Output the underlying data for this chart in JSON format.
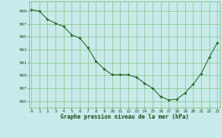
{
  "x": [
    0,
    1,
    2,
    3,
    4,
    5,
    6,
    7,
    8,
    9,
    10,
    11,
    12,
    13,
    14,
    15,
    16,
    17,
    18,
    19,
    20,
    21,
    22,
    23
  ],
  "y": [
    999.2,
    999.0,
    997.7,
    997.1,
    996.6,
    995.3,
    994.8,
    993.3,
    991.2,
    990.0,
    989.1,
    989.1,
    989.1,
    988.7,
    987.8,
    987.0,
    985.7,
    985.2,
    985.3,
    986.3,
    987.6,
    989.3,
    991.8,
    994.1
  ],
  "line_color": "#2d6e2d",
  "marker_color": "#2d6e2d",
  "bg_color": "#c8eaea",
  "plot_bg_color": "#c8eaea",
  "grid_color": "#7abf7a",
  "xlabel": "Graphe pression niveau de la mer (hPa)",
  "xlabel_color": "#1a4a1a",
  "tick_color": "#1a4a1a",
  "ylim": [
    984,
    1000.5
  ],
  "yticks": [
    985,
    987,
    989,
    991,
    993,
    995,
    997,
    999
  ],
  "xlim": [
    -0.3,
    23.3
  ],
  "xticks": [
    0,
    1,
    2,
    3,
    4,
    5,
    6,
    7,
    8,
    9,
    10,
    11,
    12,
    13,
    14,
    15,
    16,
    17,
    18,
    19,
    20,
    21,
    22,
    23
  ]
}
